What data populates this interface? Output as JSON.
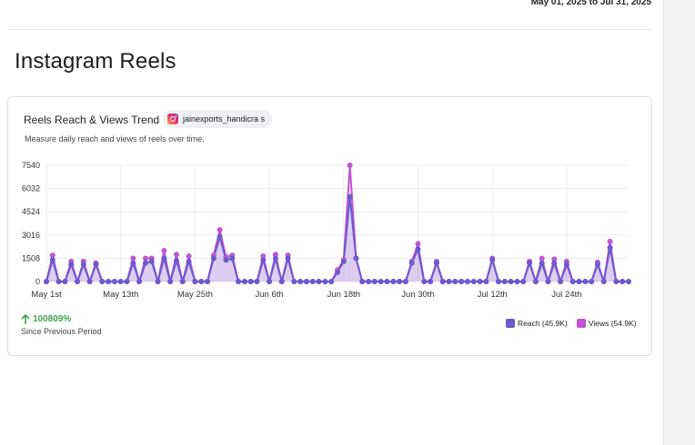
{
  "header": {
    "date_range": "May 01, 2025 to Jul 31, 2025"
  },
  "page": {
    "title": "Instagram Reels"
  },
  "card": {
    "title": "Reels Reach & Views Trend",
    "account": "jainexports_handicra s",
    "account_icon": "instagram-icon",
    "subtitle": "Measure daily reach and views of reels over time.",
    "growth": {
      "icon": "arrow-up-icon",
      "value": "100809%",
      "label": "Since Previous Period"
    }
  },
  "chart_data": {
    "type": "area",
    "x_labels": [
      "May 1st",
      "May 13th",
      "May 25th",
      "Jun 6th",
      "Jun 18th",
      "Jun 30th",
      "Jul 12th",
      "Jul 24th"
    ],
    "x_label_index": [
      0,
      12,
      24,
      36,
      48,
      60,
      72,
      84
    ],
    "y_ticks": [
      0,
      1508,
      3016,
      4524,
      6032,
      7540
    ],
    "ylim": [
      0,
      7540
    ],
    "grid": true,
    "legend_position": "bottom-right",
    "series": [
      {
        "name": "Reach (45.9K)",
        "color": "#6a5acd",
        "values": [
          0,
          1400,
          0,
          0,
          1100,
          0,
          1100,
          0,
          1100,
          0,
          0,
          0,
          0,
          0,
          1200,
          0,
          1200,
          1300,
          0,
          1500,
          0,
          1350,
          0,
          1300,
          0,
          0,
          0,
          1500,
          2900,
          1400,
          1500,
          0,
          0,
          0,
          0,
          1400,
          0,
          1500,
          0,
          1500,
          0,
          0,
          0,
          0,
          0,
          0,
          0,
          600,
          1300,
          5500,
          1500,
          0,
          0,
          0,
          0,
          0,
          0,
          0,
          0,
          1200,
          2100,
          0,
          0,
          1200,
          0,
          0,
          0,
          0,
          0,
          0,
          0,
          0,
          1400,
          0,
          0,
          0,
          0,
          0,
          1200,
          0,
          1200,
          0,
          1200,
          0,
          1100,
          0,
          0,
          0,
          0,
          1100,
          0,
          2200,
          0,
          0,
          0
        ]
      },
      {
        "name": "Views (54.9K)",
        "color": "#c056d0",
        "values": [
          0,
          1700,
          0,
          0,
          1300,
          0,
          1300,
          0,
          1200,
          0,
          0,
          0,
          0,
          0,
          1500,
          0,
          1500,
          1500,
          0,
          2000,
          0,
          1750,
          0,
          1650,
          0,
          0,
          0,
          1700,
          3350,
          1600,
          1700,
          0,
          0,
          0,
          0,
          1650,
          0,
          1750,
          0,
          1700,
          0,
          0,
          0,
          0,
          0,
          0,
          0,
          750,
          1400,
          7540,
          1500,
          0,
          0,
          0,
          0,
          0,
          0,
          0,
          0,
          1300,
          2450,
          0,
          0,
          1300,
          0,
          0,
          0,
          0,
          0,
          0,
          0,
          0,
          1500,
          0,
          0,
          0,
          0,
          0,
          1300,
          0,
          1500,
          0,
          1450,
          0,
          1300,
          0,
          0,
          0,
          0,
          1250,
          0,
          2600,
          0,
          0,
          0
        ]
      }
    ]
  }
}
